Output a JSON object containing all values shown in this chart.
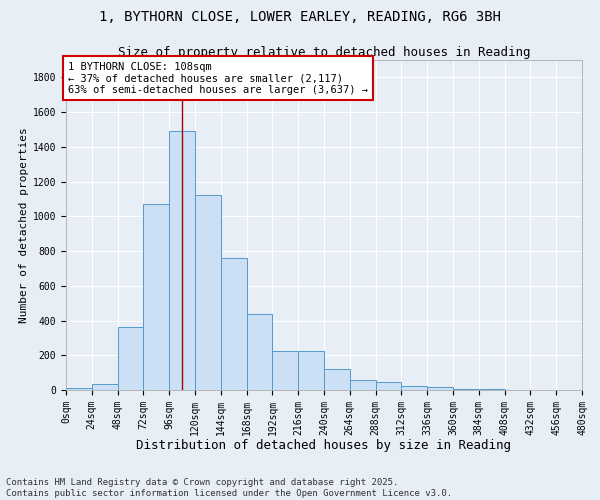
{
  "title1": "1, BYTHORN CLOSE, LOWER EARLEY, READING, RG6 3BH",
  "title2": "Size of property relative to detached houses in Reading",
  "xlabel": "Distribution of detached houses by size in Reading",
  "ylabel": "Number of detached properties",
  "bin_edges": [
    0,
    24,
    48,
    72,
    96,
    120,
    144,
    168,
    192,
    216,
    240,
    264,
    288,
    312,
    336,
    360,
    384,
    408,
    432,
    456,
    480
  ],
  "bar_heights": [
    10,
    35,
    360,
    1070,
    1490,
    1125,
    760,
    435,
    225,
    225,
    120,
    60,
    45,
    22,
    15,
    5,
    3,
    2,
    1,
    1
  ],
  "bar_facecolor": "#cce0f5",
  "bar_edgecolor": "#5599cc",
  "vline_x": 108,
  "vline_color": "#aa0000",
  "annotation_text": "1 BYTHORN CLOSE: 108sqm\n← 37% of detached houses are smaller (2,117)\n63% of semi-detached houses are larger (3,637) →",
  "annotation_box_edgecolor": "#cc0000",
  "annotation_box_facecolor": "#ffffff",
  "ylim": [
    0,
    1900
  ],
  "yticks": [
    0,
    200,
    400,
    600,
    800,
    1000,
    1200,
    1400,
    1600,
    1800
  ],
  "background_color": "#e8eef5",
  "grid_color": "#ffffff",
  "footer": "Contains HM Land Registry data © Crown copyright and database right 2025.\nContains public sector information licensed under the Open Government Licence v3.0.",
  "title1_fontsize": 10,
  "title2_fontsize": 9,
  "xlabel_fontsize": 9,
  "ylabel_fontsize": 8,
  "tick_fontsize": 7,
  "ann_fontsize": 7.5,
  "footer_fontsize": 6.5
}
